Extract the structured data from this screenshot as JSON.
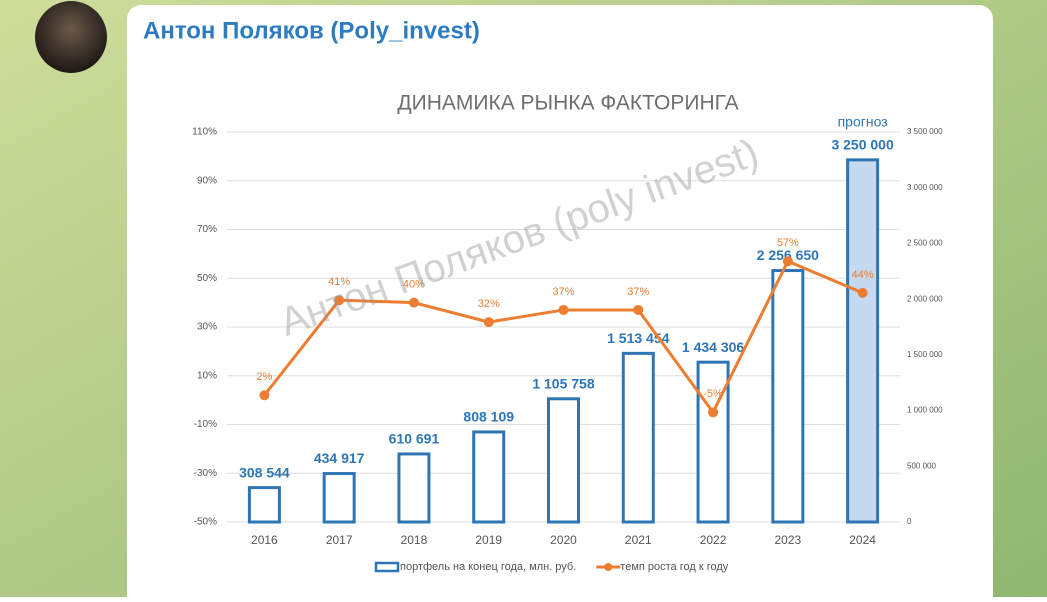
{
  "header": {
    "author": "Антон Поляков (Poly_invest)"
  },
  "chart_data": {
    "type": "bar-line",
    "title": "ДИНАМИКА РЫНКА ФАКТОРИНГА",
    "watermark": "Антон Поляков (poly invest)",
    "annotation": "прогноз",
    "categories": [
      "2016",
      "2017",
      "2018",
      "2019",
      "2020",
      "2021",
      "2022",
      "2023",
      "2024"
    ],
    "series": [
      {
        "name": "портфель на конец года, млн. руб.",
        "type": "bar",
        "axis": "y2",
        "color": "#2e75b6",
        "fills": [
          "#ffffff",
          "#ffffff",
          "#ffffff",
          "#ffffff",
          "#ffffff",
          "#ffffff",
          "#ffffff",
          "#ffffff",
          "#c5d9f1"
        ],
        "values": [
          308544,
          434917,
          610691,
          808109,
          1105758,
          1513454,
          1434306,
          2256650,
          3250000
        ],
        "value_labels": [
          "308 544",
          "434 917",
          "610 691",
          "808 109",
          "1 105 758",
          "1 513 454",
          "1 434 306",
          "2 256 650",
          "3 250 000"
        ]
      },
      {
        "name": "темп роста год к году",
        "type": "line",
        "axis": "y",
        "color": "#ed7d31",
        "values": [
          2,
          41,
          40,
          32,
          37,
          37,
          -5,
          57,
          44
        ],
        "value_labels": [
          "2%",
          "41%",
          "40%",
          "32%",
          "37%",
          "37%",
          "-5%",
          "57%",
          "44%"
        ]
      }
    ],
    "ylim": [
      -50,
      110
    ],
    "yticks": [
      {
        "value": -50,
        "label": "-50%"
      },
      {
        "value": -30,
        "label": "-30%"
      },
      {
        "value": -10,
        "label": "-10%"
      },
      {
        "value": 10,
        "label": "10%"
      },
      {
        "value": 30,
        "label": "30%"
      },
      {
        "value": 50,
        "label": "50%"
      },
      {
        "value": 70,
        "label": "70%"
      },
      {
        "value": 90,
        "label": "90%"
      },
      {
        "value": 110,
        "label": "110%"
      }
    ],
    "y2lim": [
      0,
      3500000
    ],
    "y2ticks": [
      0,
      {
        "value": 500000,
        "label": "500 000"
      },
      {
        "value": 1000000,
        "label": "1 000 000"
      },
      {
        "value": 1500000,
        "label": "1 500 000"
      },
      {
        "value": 2000000,
        "label": "2 000 000"
      },
      {
        "value": 2500000,
        "label": "2 500 000"
      },
      {
        "value": 3000000,
        "label": "3 000 000"
      },
      {
        "value": 3500000,
        "label": "3 500 000"
      }
    ],
    "grid": true,
    "legend": "bottom"
  }
}
